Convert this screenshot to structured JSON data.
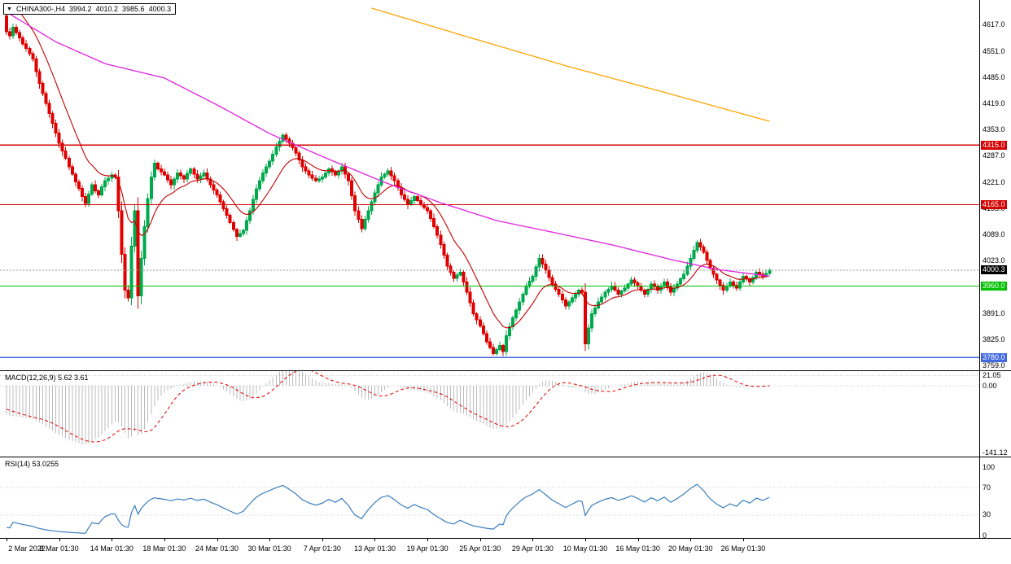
{
  "header": {
    "symbol_timeframe": "CHINA300-,H4",
    "open": "3994.2",
    "high": "4010.2",
    "low": "3985.6",
    "close": "4000.3"
  },
  "indicators": {
    "macd": {
      "label": "MACD(12,26,9) 5.62 3.61",
      "fast": 12,
      "slow": 26,
      "signal_period": 9,
      "value": 5.62,
      "signal_value": 3.61,
      "axis_labels": [
        "21.05",
        "0.00",
        "-141.12"
      ]
    },
    "rsi": {
      "label": "RSI(14) 53.0255",
      "period": 14,
      "value": 53.0255,
      "axis_labels": [
        "100",
        "70",
        "30",
        "0"
      ],
      "levels": [
        70,
        30
      ]
    }
  },
  "colors": {
    "background": "#FFFFFF",
    "border": "#000000",
    "bull": "#00A94C",
    "bear": "#E00000",
    "level_red": "#D40000",
    "level_green": "#00C000",
    "level_blue": "#4169E1",
    "ma_fast": "#C00000",
    "ma_medium": "#E020E0",
    "ma_long": "#FFA500",
    "macd_histogram": "#BBBBBB",
    "macd_signal": "#E00000",
    "rsi_line": "#3A7EBF",
    "grid_dotted": "#C8C8C8",
    "bid_line": "#9A9A9A",
    "badge_current": "#000000"
  },
  "chart_data": {
    "type": "candlestick",
    "symbol": "CHINA300-",
    "timeframe": "H4",
    "last_close": 4000.3,
    "warmup_bars": 26,
    "closes": [
      4905,
      4890,
      4898,
      4875,
      4860,
      4868,
      4845,
      4830,
      4838,
      4815,
      4800,
      4808,
      4785,
      4770,
      4778,
      4755,
      4742,
      4748,
      4725,
      4710,
      4716,
      4695,
      4680,
      4686,
      4665,
      4640,
      4600,
      4590,
      4612,
      4598,
      4585,
      4570,
      4558,
      4545,
      4532,
      4500,
      4470,
      4445,
      4420,
      4395,
      4370,
      4345,
      4320,
      4300,
      4282,
      4260,
      4242,
      4222,
      4206,
      4185,
      4168,
      4192,
      4215,
      4200,
      4190,
      4210,
      4225,
      4232,
      4240,
      4235,
      4150,
      4040,
      3950,
      3930,
      4060,
      4150,
      3935,
      4030,
      4110,
      4180,
      4235,
      4270,
      4255,
      4248,
      4240,
      4228,
      4215,
      4230,
      4245,
      4238,
      4230,
      4244,
      4255,
      4242,
      4230,
      4238,
      4245,
      4230,
      4215,
      4202,
      4190,
      4172,
      4155,
      4138,
      4120,
      4102,
      4085,
      4092,
      4100,
      4125,
      4150,
      4178,
      4205,
      4225,
      4245,
      4260,
      4275,
      4292,
      4310,
      4325,
      4340,
      4330,
      4320,
      4308,
      4295,
      4278,
      4260,
      4250,
      4240,
      4232,
      4225,
      4230,
      4235,
      4245,
      4255,
      4248,
      4240,
      4250,
      4260,
      4242,
      4225,
      4188,
      4150,
      4128,
      4105,
      4128,
      4150,
      4172,
      4195,
      4215,
      4235,
      4242,
      4250,
      4238,
      4225,
      4208,
      4190,
      4178,
      4165,
      4175,
      4185,
      4175,
      4165,
      4158,
      4150,
      4130,
      4110,
      4088,
      4065,
      4038,
      4010,
      3995,
      3980,
      3988,
      3995,
      3970,
      3945,
      3918,
      3890,
      3875,
      3860,
      3840,
      3820,
      3805,
      3790,
      3800,
      3810,
      3795,
      3835,
      3858,
      3880,
      3900,
      3920,
      3940,
      3960,
      3972,
      3985,
      4008,
      4030,
      4015,
      4000,
      3982,
      3965,
      3952,
      3940,
      3925,
      3910,
      3920,
      3930,
      3940,
      3950,
      3945,
      3815,
      3855,
      3890,
      3905,
      3920,
      3932,
      3945,
      3952,
      3960,
      3950,
      3940,
      3948,
      3955,
      3965,
      3975,
      3968,
      3960,
      3950,
      3940,
      3952,
      3965,
      3958,
      3950,
      3960,
      3970,
      3958,
      3945,
      3955,
      3965,
      3978,
      3990,
      4010,
      4030,
      4050,
      4070,
      4058,
      4045,
      4025,
      4005,
      3990,
      3975,
      3962,
      3950,
      3960,
      3970,
      3962,
      3955,
      3970,
      3985,
      3978,
      3970,
      3982,
      3995,
      3990,
      3985,
      3992,
      4000.3
    ],
    "y_axis": {
      "top_price": 4664,
      "bottom_price": 3750,
      "tick_labels": [
        "4617.0",
        "4551.0",
        "4485.0",
        "4419.0",
        "4353.0",
        "4287.0",
        "4221.0",
        "4155.0",
        "4089.0",
        "4023.0",
        "3957.0",
        "3891.0",
        "3825.0",
        "3759.0"
      ]
    },
    "x_axis": {
      "labels": [
        {
          "text": "2 Mar 2022",
          "i": 0
        },
        {
          "text": "8 Mar 01:30",
          "i": 16
        },
        {
          "text": "14 Mar 01:30",
          "i": 32
        },
        {
          "text": "18 Mar 01:30",
          "i": 48
        },
        {
          "text": "24 Mar 01:30",
          "i": 64
        },
        {
          "text": "30 Mar 01:30",
          "i": 80
        },
        {
          "text": "7 Apr 01:30",
          "i": 96
        },
        {
          "text": "13 Apr 01:30",
          "i": 112
        },
        {
          "text": "19 Apr 01:30",
          "i": 128
        },
        {
          "text": "25 Apr 01:30",
          "i": 144
        },
        {
          "text": "29 Apr 01:30",
          "i": 160
        },
        {
          "text": "10 May 01:30",
          "i": 176
        },
        {
          "text": "16 May 01:30",
          "i": 192
        },
        {
          "text": "20 May 01:30",
          "i": 208
        },
        {
          "text": "26 May 01:30",
          "i": 224
        }
      ]
    },
    "horizontal_levels": [
      {
        "price": 4315.0,
        "label": "4315.0",
        "color": "#D40000"
      },
      {
        "price": 4165.0,
        "label": "4165.0",
        "color": "#D40000"
      },
      {
        "price": 3960.0,
        "label": "3960.0",
        "color": "#00C000"
      },
      {
        "price": 3780.0,
        "label": "3780.0",
        "color": "#4169E1"
      }
    ],
    "bid": {
      "price": 4000.3,
      "label": "4000.3"
    },
    "overlays": {
      "ma_fast": {
        "type": "ema",
        "period": 13,
        "color": "#C00000"
      },
      "ma_medium": {
        "type": "keypoints",
        "color": "#E020E0",
        "points": [
          [
            0,
            4650
          ],
          [
            15,
            4575
          ],
          [
            30,
            4520
          ],
          [
            48,
            4484
          ],
          [
            65,
            4412
          ],
          [
            80,
            4344
          ],
          [
            97,
            4283
          ],
          [
            115,
            4221
          ],
          [
            132,
            4170
          ],
          [
            149,
            4125
          ],
          [
            167,
            4094
          ],
          [
            184,
            4064
          ],
          [
            202,
            4027
          ],
          [
            216,
            4002
          ],
          [
            232,
            3985
          ]
        ]
      },
      "ma_long": {
        "type": "keypoints",
        "color": "#FFA500",
        "points": [
          [
            111,
            4660
          ],
          [
            140,
            4588
          ],
          [
            170,
            4515
          ],
          [
            200,
            4448
          ],
          [
            232,
            4375
          ]
        ]
      }
    }
  }
}
